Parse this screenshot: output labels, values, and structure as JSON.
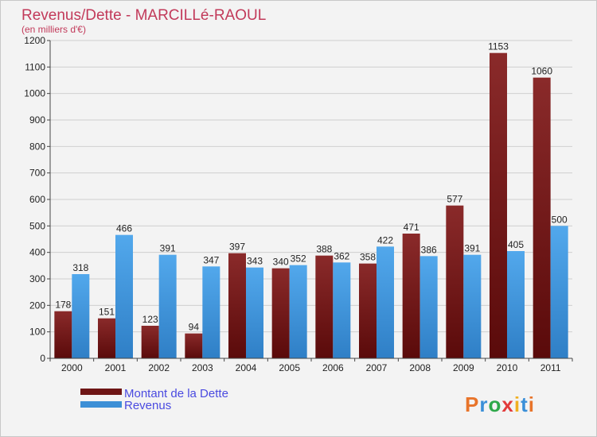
{
  "chart_data": {
    "type": "bar",
    "title": "Revenus/Dette - MARCILLé-RAOUL",
    "subtitle": "(en milliers d'€)",
    "categories": [
      "2000",
      "2001",
      "2002",
      "2003",
      "2004",
      "2005",
      "2006",
      "2007",
      "2008",
      "2009",
      "2010",
      "2011"
    ],
    "series": [
      {
        "name": "Montant de la Dette",
        "color": "#7a1a1a",
        "values": [
          178,
          151,
          123,
          94,
          397,
          340,
          388,
          358,
          471,
          577,
          1153,
          1060
        ]
      },
      {
        "name": "Revenus",
        "color": "#3d8fd6",
        "values": [
          318,
          466,
          391,
          347,
          343,
          352,
          362,
          422,
          386,
          391,
          405,
          500
        ]
      }
    ],
    "ylim": [
      0,
      1200
    ],
    "yticks": [
      0,
      100,
      200,
      300,
      400,
      500,
      600,
      700,
      800,
      900,
      1000,
      1100,
      1200
    ],
    "grid": true,
    "legend_position": "bottom-left"
  },
  "brand": {
    "logo_text": "Proxiti"
  }
}
